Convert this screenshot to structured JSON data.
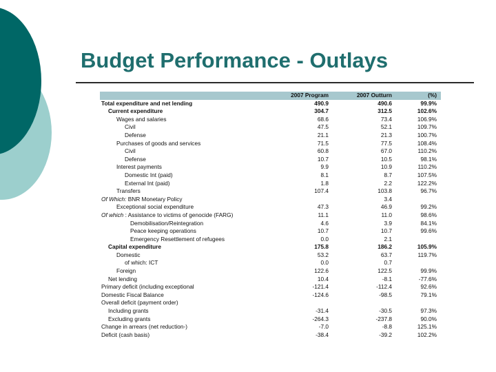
{
  "title": "Budget Performance - Outlays",
  "table": {
    "headers": [
      "",
      "2007 Program",
      "2007 Outturn",
      "(%)"
    ],
    "rows": [
      {
        "label": "Total expenditure and net lending",
        "program": "490.9",
        "outturn": "490.6",
        "pct": "99.9%",
        "bold": true,
        "indent": 0
      },
      {
        "label": "Current expenditure",
        "program": "304.7",
        "outturn": "312.5",
        "pct": "102.6%",
        "bold": true,
        "indent": 1
      },
      {
        "label": "Wages and salaries",
        "program": "68.6",
        "outturn": "73.4",
        "pct": "106.9%",
        "indent": 2
      },
      {
        "label": "Civil",
        "program": "47.5",
        "outturn": "52.1",
        "pct": "109.7%",
        "indent": 3
      },
      {
        "label": "Defense",
        "program": "21.1",
        "outturn": "21.3",
        "pct": "100.7%",
        "indent": 3
      },
      {
        "label": "Purchases of goods and services",
        "program": "71.5",
        "outturn": "77.5",
        "pct": "108.4%",
        "indent": 2
      },
      {
        "label": "Civil",
        "program": "60.8",
        "outturn": "67.0",
        "pct": "110.2%",
        "indent": 3
      },
      {
        "label": "Defense",
        "program": "10.7",
        "outturn": "10.5",
        "pct": "98.1%",
        "indent": 3
      },
      {
        "label": "Interest payments",
        "program": "9.9",
        "outturn": "10.9",
        "pct": "110.2%",
        "indent": 2
      },
      {
        "label": "Domestic Int (paid)",
        "program": "8.1",
        "outturn": "8.7",
        "pct": "107.5%",
        "indent": 3
      },
      {
        "label": "External Int (paid)",
        "program": "1.8",
        "outturn": "2.2",
        "pct": "122.2%",
        "indent": 3
      },
      {
        "label": "Transfers",
        "program": "107.4",
        "outturn": "103.8",
        "pct": "96.7%",
        "indent": 2
      },
      {
        "label_prefix": "Of Which:",
        "label": " BNR Monetary Policy",
        "program": "",
        "outturn": "3.4",
        "pct": "",
        "indent": 0
      },
      {
        "label": "Exceptional social expenditure",
        "program": "47.3",
        "outturn": "46.9",
        "pct": "99.2%",
        "indent": 2
      },
      {
        "label_prefix": "Of which",
        "label": "  : Assistance to victims of genocide (FARG)",
        "program": "11.1",
        "outturn": "11.0",
        "pct": "98.6%",
        "indent": 0
      },
      {
        "label": "Demobilisation/Reintegration",
        "program": "4.6",
        "outturn": "3.9",
        "pct": "84.1%",
        "indent": 4
      },
      {
        "label": "Peace keeping operations",
        "program": "10.7",
        "outturn": "10.7",
        "pct": "99.6%",
        "indent": 4
      },
      {
        "label": "Emergency Resettlement of refugees",
        "program": "0.0",
        "outturn": "2.1",
        "pct": "",
        "indent": 4
      },
      {
        "label": "Capital expenditure",
        "program": "175.8",
        "outturn": "186.2",
        "pct": "105.9%",
        "bold": true,
        "indent": 1
      },
      {
        "label": "Domestic",
        "program": "53.2",
        "outturn": "63.7",
        "pct": "119.7%",
        "indent": 2
      },
      {
        "label": "of which: ICT",
        "program": "0.0",
        "outturn": "0.7",
        "pct": "",
        "indent": 3
      },
      {
        "label": "Foreign",
        "program": "122.6",
        "outturn": "122.5",
        "pct": "99.9%",
        "indent": 2
      },
      {
        "label": "Net lending",
        "program": "10.4",
        "outturn": "-8.1",
        "pct": "-77.6%",
        "indent": 1
      },
      {
        "label": "Primary deficit (including exceptional",
        "program": "-121.4",
        "outturn": "-112.4",
        "pct": "92.6%",
        "indent": 0
      },
      {
        "label": "Domestic Fiscal Balance",
        "program": "-124.6",
        "outturn": "-98.5",
        "pct": "79.1%",
        "indent": 0
      },
      {
        "label": "Overall deficit (payment order)",
        "program": "",
        "outturn": "",
        "pct": "",
        "indent": 0
      },
      {
        "label": "Including grants",
        "program": "-31.4",
        "outturn": "-30.5",
        "pct": "97.3%",
        "indent": 1
      },
      {
        "label": "Excluding grants",
        "program": "-264.3",
        "outturn": "-237.8",
        "pct": "90.0%",
        "indent": 1
      },
      {
        "label": "Change in arrears (net reduction-)",
        "program": "-7.0",
        "outturn": "-8.8",
        "pct": "125.1%",
        "indent": 0
      },
      {
        "label": "Deficit (cash basis)",
        "program": "-38.4",
        "outturn": "-39.2",
        "pct": "102.2%",
        "indent": 0
      }
    ]
  }
}
